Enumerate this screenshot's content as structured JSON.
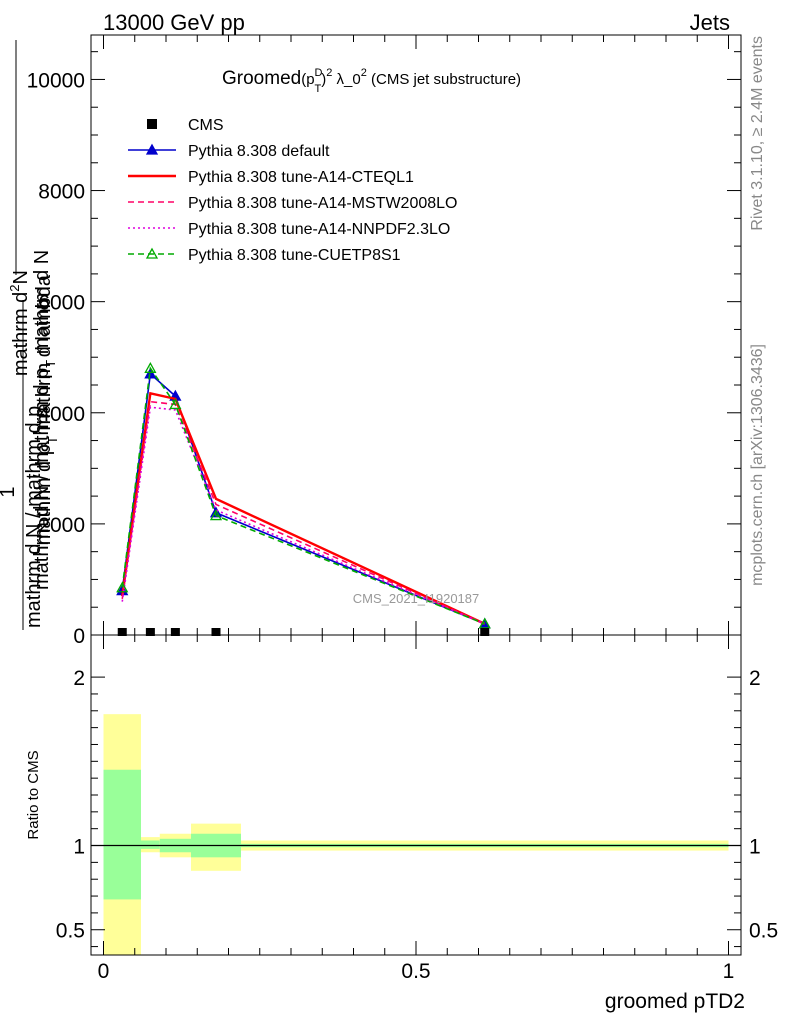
{
  "header": {
    "left": "13000 GeV pp",
    "right": "Jets"
  },
  "side_labels": {
    "rivet": "Rivet 3.1.10, ≥ 2.4M events",
    "mcplots": "mcplots.cern.ch [arXiv:1306.3436]"
  },
  "watermark": "CMS_2021_I1920187",
  "chart_data": [
    {
      "type": "line",
      "title": "Groomed(p_T^D)^2 λ_0^2 (CMS jet substructure)",
      "title_main": "Groomed",
      "title_paren": "(p",
      "title_sup_d": "D",
      "title_sub_t": "T",
      "title_close": ")",
      "title_sup_2": "2",
      "title_lambda": " λ_0",
      "title_tail": " (CMS jet substructure)",
      "ylabel_top_line1": "mathrm d",
      "ylabel_top_sup": "2",
      "ylabel_top_line1b": "N",
      "ylabel_top_line2": "mathrm d p",
      "ylabel_top_line2_sub": "T",
      "ylabel_top_line2b": " mathrm d lambda",
      "ylabel_bottom_num": "1",
      "ylabel_bottom_line1": "mathrm d N / mathrm d p",
      "ylabel_bottom_line1_sub": "T",
      "ylabel_bottom_line1b": " mathrm d N",
      "ylabel_bottom_line2": "mathrm d N / mathrm d p",
      "xlim": [
        -0.02,
        1.02
      ],
      "ylim": [
        0,
        10800
      ],
      "yticks": [
        0,
        2000,
        4000,
        6000,
        8000,
        10000
      ],
      "ytick_labels": [
        "0",
        "2000",
        "4000",
        "6000",
        "8000",
        "10000"
      ],
      "legend_position": "top-left",
      "data_points": {
        "name": "CMS",
        "x": [
          0.03,
          0.075,
          0.115,
          0.18,
          0.61
        ],
        "y": [
          0,
          0,
          0,
          0,
          0
        ]
      },
      "series": [
        {
          "name": "Pythia 8.308 default",
          "color": "#0000cc",
          "style": "solid",
          "marker": "triangle-filled",
          "x": [
            0.03,
            0.075,
            0.115,
            0.18,
            0.61
          ],
          "y": [
            800,
            4700,
            4300,
            2200,
            200
          ]
        },
        {
          "name": "Pythia 8.308 tune-A14-CTEQL1",
          "color": "#ff0000",
          "style": "solid",
          "marker": "none",
          "x": [
            0.03,
            0.075,
            0.115,
            0.18,
            0.61
          ],
          "y": [
            700,
            4350,
            4250,
            2450,
            200
          ]
        },
        {
          "name": "Pythia 8.308 tune-A14-MSTW2008LO",
          "color": "#ff0066",
          "style": "dashed",
          "marker": "none",
          "x": [
            0.03,
            0.075,
            0.115,
            0.18,
            0.61
          ],
          "y": [
            650,
            4200,
            4150,
            2350,
            200
          ]
        },
        {
          "name": "Pythia 8.308 tune-A14-NNPDF2.3LO",
          "color": "#dd00dd",
          "style": "dotted",
          "marker": "none",
          "x": [
            0.03,
            0.075,
            0.115,
            0.18,
            0.61
          ],
          "y": [
            600,
            4100,
            4050,
            2250,
            200
          ]
        },
        {
          "name": "Pythia 8.308 tune-CUETP8S1",
          "color": "#00aa00",
          "style": "dashed",
          "marker": "triangle-open",
          "x": [
            0.03,
            0.075,
            0.115,
            0.18,
            0.61
          ],
          "y": [
            850,
            4800,
            4150,
            2150,
            200
          ]
        }
      ]
    },
    {
      "type": "area",
      "ylabel": "Ratio to CMS",
      "xlabel": "groomed pTD2",
      "xlim": [
        -0.02,
        1.02
      ],
      "ylim": [
        0.35,
        2.25
      ],
      "yticks": [
        0.5,
        1,
        2
      ],
      "ytick_labels": [
        "0.5",
        "1",
        "2"
      ],
      "xticks": [
        0,
        0.5,
        1
      ],
      "xtick_labels": [
        "0",
        "0.5",
        "1"
      ],
      "reference_line": 1,
      "bins": [
        {
          "x0": 0.0,
          "x1": 0.06,
          "inner": [
            0.68,
            1.45
          ],
          "outer": [
            0.35,
            1.78
          ]
        },
        {
          "x0": 0.06,
          "x1": 0.09,
          "inner": [
            0.98,
            1.03
          ],
          "outer": [
            0.96,
            1.05
          ]
        },
        {
          "x0": 0.09,
          "x1": 0.14,
          "inner": [
            0.96,
            1.04
          ],
          "outer": [
            0.93,
            1.07
          ]
        },
        {
          "x0": 0.14,
          "x1": 0.22,
          "inner": [
            0.93,
            1.07
          ],
          "outer": [
            0.85,
            1.13
          ]
        },
        {
          "x0": 0.22,
          "x1": 1.0,
          "inner": [
            0.99,
            1.01
          ],
          "outer": [
            0.97,
            1.03
          ]
        }
      ]
    }
  ]
}
